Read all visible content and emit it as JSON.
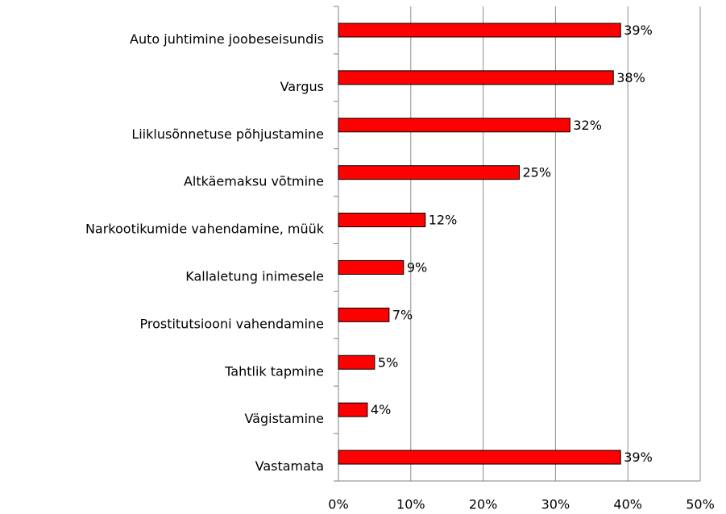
{
  "chart_data": {
    "type": "bar",
    "orientation": "horizontal",
    "categories": [
      "Auto juhtimine joobeseisundis",
      "Vargus",
      "Liiklusõnnetuse põhjustamine",
      "Altkäemaksu võtmine",
      "Narkootikumide vahendamine, müük",
      "Kallaletung inimesele",
      "Prostitutsiooni vahendamine",
      "Tahtlik tapmine",
      "Vägistamine",
      "Vastamata"
    ],
    "values": [
      39,
      38,
      32,
      25,
      12,
      9,
      7,
      5,
      4,
      39
    ],
    "value_labels": [
      "39%",
      "38%",
      "32%",
      "25%",
      "12%",
      "9%",
      "7%",
      "5%",
      "4%",
      "39%"
    ],
    "color": "#ff0000",
    "xlim": [
      0,
      50
    ],
    "xticks": [
      {
        "value": 0,
        "label": "0%"
      },
      {
        "value": 10,
        "label": "10%"
      },
      {
        "value": 20,
        "label": "20%"
      },
      {
        "value": 30,
        "label": "30%"
      },
      {
        "value": 40,
        "label": "40%"
      },
      {
        "value": 50,
        "label": "50%"
      }
    ],
    "grid": true
  }
}
